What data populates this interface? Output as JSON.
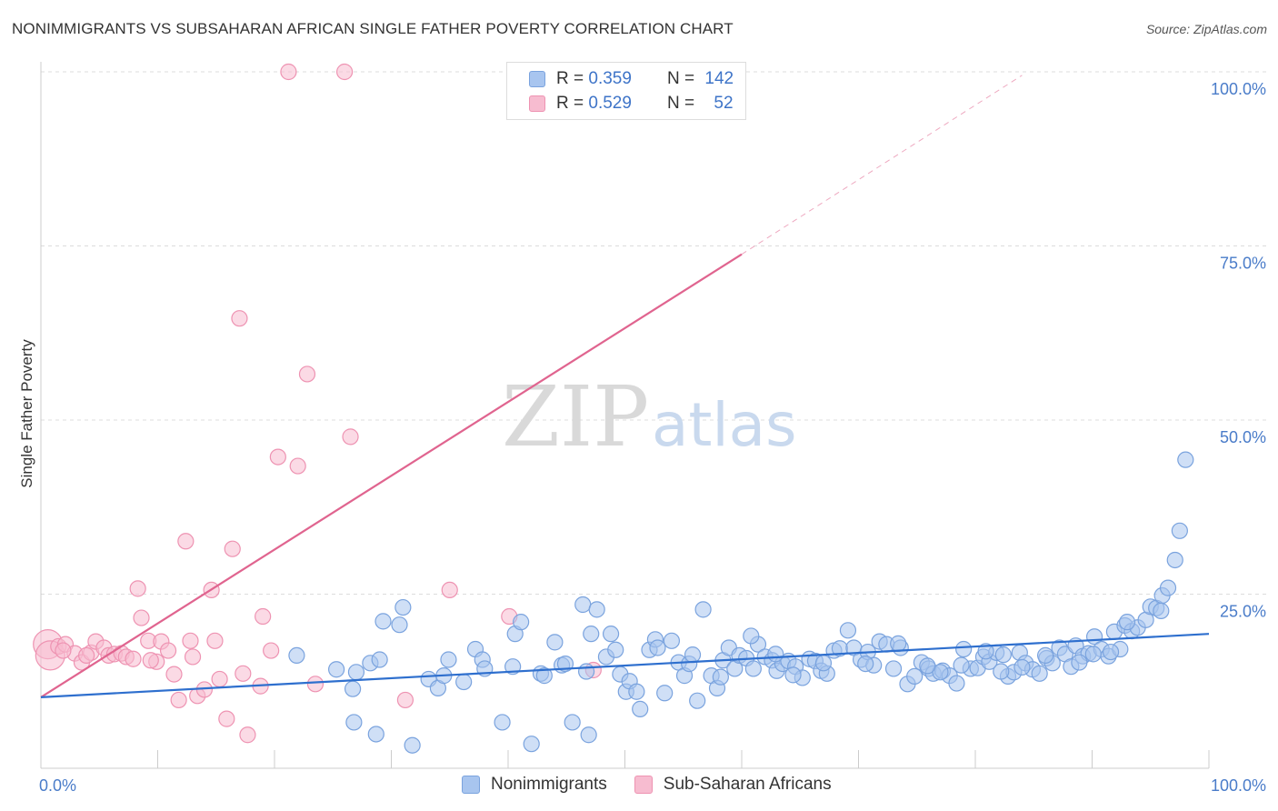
{
  "title": "NONIMMIGRANTS VS SUBSAHARAN AFRICAN SINGLE FATHER POVERTY CORRELATION CHART",
  "source": "Source: ZipAtlas.com",
  "watermark": {
    "zip": "ZIP",
    "atlas": "atlas"
  },
  "legend": {
    "rows": [
      {
        "r_label": "R = ",
        "r_value": "0.359",
        "n_label": "N = ",
        "n_value": "142",
        "color": "#a8c5ef",
        "border": "#7aa3de"
      },
      {
        "r_label": "R = ",
        "r_value": "0.529",
        "n_label": "N = ",
        "n_value": "52",
        "color": "#f7bcd0",
        "border": "#ee93b2"
      }
    ]
  },
  "bottom_legend": [
    {
      "label": "Nonimmigrants",
      "color": "#a8c5ef",
      "border": "#7aa3de"
    },
    {
      "label": "Sub-Saharan Africans",
      "color": "#f7bcd0",
      "border": "#ee93b2"
    }
  ],
  "chart_data": {
    "type": "scatter",
    "ylabel": "Single Father Poverty",
    "xlim": [
      0,
      100
    ],
    "ylim": [
      0,
      100
    ],
    "x_ticks": [
      "0.0%",
      "100.0%"
    ],
    "y_ticks": [
      {
        "value": 25,
        "label": "25.0%"
      },
      {
        "value": 50,
        "label": "50.0%"
      },
      {
        "value": 75,
        "label": "75.0%"
      },
      {
        "value": 100,
        "label": "100.0%"
      }
    ],
    "grid": true,
    "series": [
      {
        "name": "Nonimmigrants",
        "color": "#7aa3de",
        "fill": "#a8c5ef",
        "trend": {
          "x": [
            0,
            100
          ],
          "y": [
            10.2,
            19.3
          ],
          "color": "#2e6fce"
        },
        "points": [
          [
            21.9,
            16.2
          ],
          [
            25.3,
            14.2
          ],
          [
            26.7,
            11.4
          ],
          [
            27.0,
            13.8
          ],
          [
            26.8,
            6.6
          ],
          [
            28.2,
            15.1
          ],
          [
            28.7,
            4.9
          ],
          [
            29.0,
            15.6
          ],
          [
            29.3,
            21.1
          ],
          [
            30.7,
            20.6
          ],
          [
            31.0,
            23.1
          ],
          [
            31.8,
            3.3
          ],
          [
            33.2,
            12.8
          ],
          [
            34.0,
            11.5
          ],
          [
            34.5,
            13.3
          ],
          [
            34.9,
            15.6
          ],
          [
            36.2,
            12.4
          ],
          [
            37.2,
            17.1
          ],
          [
            37.8,
            15.6
          ],
          [
            38.0,
            14.3
          ],
          [
            39.5,
            6.6
          ],
          [
            40.4,
            14.6
          ],
          [
            40.6,
            19.3
          ],
          [
            41.1,
            21.0
          ],
          [
            42.0,
            3.5
          ],
          [
            42.8,
            13.6
          ],
          [
            43.1,
            13.3
          ],
          [
            44.0,
            18.1
          ],
          [
            44.6,
            14.8
          ],
          [
            44.9,
            15.0
          ],
          [
            45.5,
            6.6
          ],
          [
            46.4,
            23.5
          ],
          [
            46.7,
            13.9
          ],
          [
            46.9,
            4.8
          ],
          [
            47.1,
            19.3
          ],
          [
            47.6,
            22.8
          ],
          [
            48.4,
            16.0
          ],
          [
            48.8,
            19.3
          ],
          [
            49.2,
            17.0
          ],
          [
            49.6,
            13.5
          ],
          [
            50.1,
            11.0
          ],
          [
            50.4,
            12.5
          ],
          [
            51.0,
            11.0
          ],
          [
            51.3,
            8.5
          ],
          [
            52.1,
            17.0
          ],
          [
            52.6,
            18.5
          ],
          [
            52.8,
            17.3
          ],
          [
            53.4,
            10.8
          ],
          [
            54.0,
            18.3
          ],
          [
            54.6,
            15.2
          ],
          [
            55.1,
            13.3
          ],
          [
            55.5,
            15.0
          ],
          [
            56.2,
            9.7
          ],
          [
            56.7,
            22.8
          ],
          [
            57.4,
            13.3
          ],
          [
            57.9,
            11.5
          ],
          [
            58.4,
            15.5
          ],
          [
            58.9,
            17.3
          ],
          [
            59.4,
            14.3
          ],
          [
            59.8,
            16.2
          ],
          [
            60.4,
            15.8
          ],
          [
            61.0,
            14.3
          ],
          [
            61.4,
            17.8
          ],
          [
            62.0,
            16.0
          ],
          [
            62.6,
            15.5
          ],
          [
            63.0,
            14.0
          ],
          [
            63.5,
            15.0
          ],
          [
            64.0,
            15.4
          ],
          [
            64.6,
            14.6
          ],
          [
            65.2,
            13.0
          ],
          [
            65.8,
            15.7
          ],
          [
            66.3,
            15.4
          ],
          [
            66.8,
            14.0
          ],
          [
            67.3,
            13.6
          ],
          [
            67.9,
            16.9
          ],
          [
            68.4,
            17.2
          ],
          [
            69.1,
            19.8
          ],
          [
            69.6,
            17.3
          ],
          [
            70.2,
            15.6
          ],
          [
            70.8,
            16.7
          ],
          [
            71.3,
            14.8
          ],
          [
            71.8,
            18.2
          ],
          [
            72.4,
            17.8
          ],
          [
            73.0,
            14.3
          ],
          [
            73.6,
            17.3
          ],
          [
            74.2,
            12.1
          ],
          [
            74.8,
            13.2
          ],
          [
            75.4,
            15.2
          ],
          [
            76.0,
            14.3
          ],
          [
            76.4,
            13.6
          ],
          [
            77.2,
            14.0
          ],
          [
            77.8,
            13.3
          ],
          [
            78.4,
            12.2
          ],
          [
            79.0,
            17.1
          ],
          [
            79.6,
            14.3
          ],
          [
            80.2,
            14.4
          ],
          [
            80.7,
            16.0
          ],
          [
            81.2,
            15.3
          ],
          [
            81.8,
            16.6
          ],
          [
            82.4,
            16.3
          ],
          [
            82.8,
            13.2
          ],
          [
            83.3,
            13.8
          ],
          [
            83.8,
            16.6
          ],
          [
            84.3,
            15.1
          ],
          [
            84.9,
            14.2
          ],
          [
            85.5,
            13.6
          ],
          [
            86.1,
            15.8
          ],
          [
            86.6,
            15.1
          ],
          [
            87.2,
            17.3
          ],
          [
            87.7,
            16.4
          ],
          [
            88.2,
            14.6
          ],
          [
            88.6,
            17.6
          ],
          [
            89.2,
            16.1
          ],
          [
            89.7,
            16.5
          ],
          [
            90.2,
            18.9
          ],
          [
            90.8,
            17.1
          ],
          [
            91.4,
            16.1
          ],
          [
            91.9,
            19.6
          ],
          [
            92.4,
            17.1
          ],
          [
            92.8,
            20.5
          ],
          [
            93.4,
            19.7
          ],
          [
            93.9,
            20.2
          ],
          [
            94.6,
            21.3
          ],
          [
            95.0,
            23.2
          ],
          [
            95.5,
            23.0
          ],
          [
            96.0,
            24.8
          ],
          [
            96.5,
            25.9
          ],
          [
            97.1,
            29.9
          ],
          [
            97.5,
            34.1
          ],
          [
            98.0,
            44.3
          ],
          [
            58.2,
            13.1
          ],
          [
            60.8,
            19.0
          ],
          [
            64.4,
            13.4
          ],
          [
            77.0,
            13.8
          ],
          [
            84.0,
            14.5
          ],
          [
            62.9,
            16.4
          ],
          [
            70.6,
            15.0
          ],
          [
            75.9,
            14.7
          ],
          [
            80.9,
            16.8
          ],
          [
            86.0,
            16.2
          ],
          [
            90.1,
            16.4
          ],
          [
            93.0,
            21.0
          ],
          [
            95.9,
            22.6
          ],
          [
            73.4,
            17.9
          ],
          [
            78.8,
            14.8
          ],
          [
            82.2,
            13.9
          ],
          [
            88.9,
            15.2
          ],
          [
            91.6,
            16.7
          ],
          [
            67.0,
            15.1
          ],
          [
            55.8,
            16.3
          ]
        ]
      },
      {
        "name": "Sub-Saharan Africans",
        "color": "#ee93b2",
        "fill": "#f7bcd0",
        "trend": {
          "x": [
            0,
            60
          ],
          "y": [
            10.2,
            73.8
          ],
          "color": "#e0648f"
        },
        "trend_dashed": {
          "x": [
            60,
            84
          ],
          "y": [
            73.8,
            99.5
          ]
        },
        "points": [
          [
            0.6,
            17.8
          ],
          [
            0.8,
            16.2
          ],
          [
            1.5,
            17.5
          ],
          [
            2.1,
            17.8
          ],
          [
            2.9,
            16.5
          ],
          [
            3.5,
            15.2
          ],
          [
            4.3,
            16.6
          ],
          [
            4.7,
            18.2
          ],
          [
            5.4,
            17.3
          ],
          [
            5.8,
            16.2
          ],
          [
            6.3,
            16.4
          ],
          [
            6.9,
            16.5
          ],
          [
            7.3,
            16.0
          ],
          [
            7.9,
            15.7
          ],
          [
            8.3,
            25.8
          ],
          [
            8.6,
            21.6
          ],
          [
            9.2,
            18.3
          ],
          [
            9.9,
            15.3
          ],
          [
            10.3,
            18.2
          ],
          [
            10.9,
            16.9
          ],
          [
            11.4,
            13.5
          ],
          [
            11.8,
            9.8
          ],
          [
            12.4,
            32.6
          ],
          [
            12.8,
            18.3
          ],
          [
            13.4,
            10.4
          ],
          [
            14.0,
            11.3
          ],
          [
            14.6,
            25.6
          ],
          [
            14.9,
            18.3
          ],
          [
            15.3,
            12.8
          ],
          [
            15.9,
            7.1
          ],
          [
            16.4,
            31.5
          ],
          [
            17.0,
            64.6
          ],
          [
            17.3,
            13.6
          ],
          [
            17.7,
            4.8
          ],
          [
            18.8,
            11.8
          ],
          [
            19.0,
            21.8
          ],
          [
            19.7,
            16.9
          ],
          [
            20.3,
            44.7
          ],
          [
            21.2,
            100.0
          ],
          [
            22.0,
            43.4
          ],
          [
            22.8,
            56.6
          ],
          [
            23.5,
            12.1
          ],
          [
            26.0,
            100.0
          ],
          [
            26.5,
            47.6
          ],
          [
            31.2,
            9.8
          ],
          [
            35.0,
            25.6
          ],
          [
            40.1,
            21.8
          ],
          [
            47.3,
            14.1
          ],
          [
            3.9,
            16.2
          ],
          [
            1.9,
            16.9
          ],
          [
            9.4,
            15.5
          ],
          [
            13.0,
            16.0
          ]
        ]
      }
    ]
  }
}
